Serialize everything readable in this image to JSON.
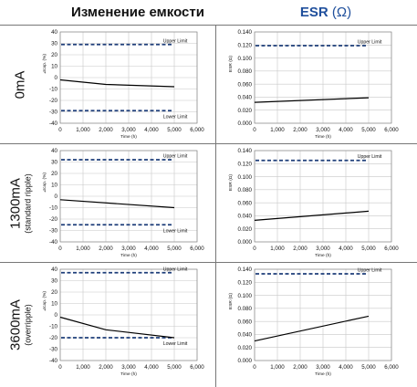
{
  "headers": {
    "capacitance_change": "Изменение емкости",
    "esr": "ESR",
    "esr_unit": "(Ω)"
  },
  "rows": [
    {
      "label": "0mA",
      "sublabel": ""
    },
    {
      "label": "1300mA",
      "sublabel": "(standard ripple)"
    },
    {
      "label": "3600mA",
      "sublabel": "(overripple)"
    }
  ],
  "colors": {
    "limit": "#1f3f7a",
    "line": "#000000",
    "esr_title": "#1f4f9c"
  },
  "chart_data": [
    {
      "type": "line",
      "row": 0,
      "column": "capacitance",
      "ylabel": "⊿cap. (%)",
      "xlabel": "Time (h)",
      "xlim": [
        0,
        6000
      ],
      "ylim": [
        -40,
        40
      ],
      "xticks": [
        "0",
        "1,000",
        "2,000",
        "3,000",
        "4,000",
        "5,000",
        "6,000"
      ],
      "yticks": [
        "40",
        "30",
        "20",
        "10",
        "0",
        "-10",
        "-20",
        "-30",
        "-40"
      ],
      "series": [
        {
          "x": [
            0,
            2000,
            5000
          ],
          "y": [
            -2,
            -6,
            -8
          ]
        }
      ],
      "limits": {
        "upper": 29,
        "lower": -29,
        "upper_label": "Upper Limit",
        "lower_label": "Lower Limit"
      }
    },
    {
      "type": "line",
      "row": 0,
      "column": "esr",
      "ylabel": "ESR (Ω)",
      "xlabel": "Time (h)",
      "xlim": [
        0,
        6000
      ],
      "ylim": [
        0,
        0.14
      ],
      "xticks": [
        "0",
        "1,000",
        "2,000",
        "3,000",
        "4,000",
        "5,000",
        "6,000"
      ],
      "yticks": [
        "0.140",
        "0.120",
        "0.100",
        "0.080",
        "0.060",
        "0.040",
        "0.020",
        "0.000"
      ],
      "series": [
        {
          "x": [
            0,
            5000
          ],
          "y": [
            0.032,
            0.039
          ]
        }
      ],
      "limits": {
        "upper": 0.119,
        "upper_label": "Upper Limit"
      }
    },
    {
      "type": "line",
      "row": 1,
      "column": "capacitance",
      "ylabel": "⊿cap. (%)",
      "xlabel": "Time (h)",
      "xlim": [
        0,
        6000
      ],
      "ylim": [
        -40,
        40
      ],
      "xticks": [
        "0",
        "1,000",
        "2,000",
        "3,000",
        "4,000",
        "5,000",
        "6,000"
      ],
      "yticks": [
        "40",
        "30",
        "20",
        "10",
        "0",
        "-10",
        "-20",
        "-30",
        "-40"
      ],
      "series": [
        {
          "x": [
            0,
            5000
          ],
          "y": [
            -3,
            -10
          ]
        }
      ],
      "limits": {
        "upper": 32,
        "lower": -25,
        "upper_label": "Upper Limit",
        "lower_label": "Lower Limit"
      }
    },
    {
      "type": "line",
      "row": 1,
      "column": "esr",
      "ylabel": "ESR (Ω)",
      "xlabel": "Time (h)",
      "xlim": [
        0,
        6000
      ],
      "ylim": [
        0,
        0.14
      ],
      "xticks": [
        "0",
        "1,000",
        "2,000",
        "3,000",
        "4,000",
        "5,000",
        "6,000"
      ],
      "yticks": [
        "0.140",
        "0.120",
        "0.100",
        "0.080",
        "0.060",
        "0.040",
        "0.020",
        "0.000"
      ],
      "series": [
        {
          "x": [
            0,
            5000
          ],
          "y": [
            0.033,
            0.047
          ]
        }
      ],
      "limits": {
        "upper": 0.125,
        "upper_label": "Upper Limit"
      }
    },
    {
      "type": "line",
      "row": 2,
      "column": "capacitance",
      "ylabel": "⊿cap. (%)",
      "xlabel": "Time (h)",
      "xlim": [
        0,
        6000
      ],
      "ylim": [
        -40,
        40
      ],
      "xticks": [
        "0",
        "1,000",
        "2,000",
        "3,000",
        "4,000",
        "5,000",
        "6,000"
      ],
      "yticks": [
        "40",
        "30",
        "20",
        "10",
        "0",
        "-10",
        "-20",
        "-30",
        "-40"
      ],
      "series": [
        {
          "x": [
            0,
            2000,
            5000
          ],
          "y": [
            -2,
            -13,
            -20
          ]
        }
      ],
      "limits": {
        "upper": 37,
        "lower": -20,
        "upper_label": "Upper Limit",
        "lower_label": "Lower Limit"
      }
    },
    {
      "type": "line",
      "row": 2,
      "column": "esr",
      "ylabel": "ESR (Ω)",
      "xlabel": "Time (h)",
      "xlim": [
        0,
        6000
      ],
      "ylim": [
        0,
        0.14
      ],
      "xticks": [
        "0",
        "1,000",
        "2,000",
        "3,000",
        "4,000",
        "5,000",
        "6,000"
      ],
      "yticks": [
        "0.140",
        "0.120",
        "0.100",
        "0.080",
        "0.060",
        "0.040",
        "0.020",
        "0.000"
      ],
      "series": [
        {
          "x": [
            0,
            5000
          ],
          "y": [
            0.03,
            0.068
          ]
        }
      ],
      "limits": {
        "upper": 0.133,
        "upper_label": "Upper Limit"
      }
    }
  ]
}
